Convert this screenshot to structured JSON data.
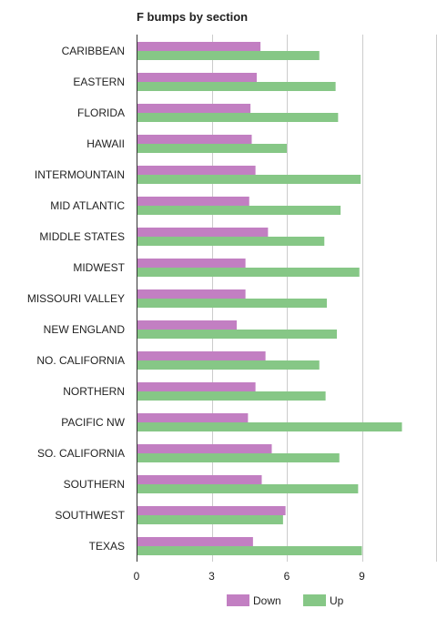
{
  "chart_data": {
    "type": "bar",
    "orientation": "horizontal",
    "title": "F bumps by section",
    "categories": [
      "CARIBBEAN",
      "EASTERN",
      "FLORIDA",
      "HAWAII",
      "INTERMOUNTAIN",
      "MID ATLANTIC",
      "MIDDLE STATES",
      "MIDWEST",
      "MISSOURI VALLEY",
      "NEW ENGLAND",
      "NO. CALIFORNIA",
      "NORTHERN",
      "PACIFIC NW",
      "SO. CALIFORNIA",
      "SOUTHERN",
      "SOUTHWEST",
      "TEXAS"
    ],
    "series": [
      {
        "name": "Down",
        "color": "#c27fc2",
        "values": [
          4.95,
          4.8,
          4.55,
          4.6,
          4.75,
          4.5,
          5.25,
          4.35,
          4.35,
          4.0,
          5.15,
          4.75,
          4.45,
          5.4,
          5.0,
          5.95,
          4.65
        ]
      },
      {
        "name": "Up",
        "color": "#86c786",
        "values": [
          7.3,
          7.95,
          8.05,
          6.0,
          8.95,
          8.15,
          7.5,
          8.9,
          7.6,
          8.0,
          7.3,
          7.55,
          10.6,
          8.1,
          8.85,
          5.85,
          9.0
        ]
      }
    ],
    "x_ticks": [
      "0",
      "3",
      "6",
      "9"
    ],
    "xlim": [
      0,
      12
    ],
    "grid": "vertical",
    "legend_position": "bottom"
  }
}
